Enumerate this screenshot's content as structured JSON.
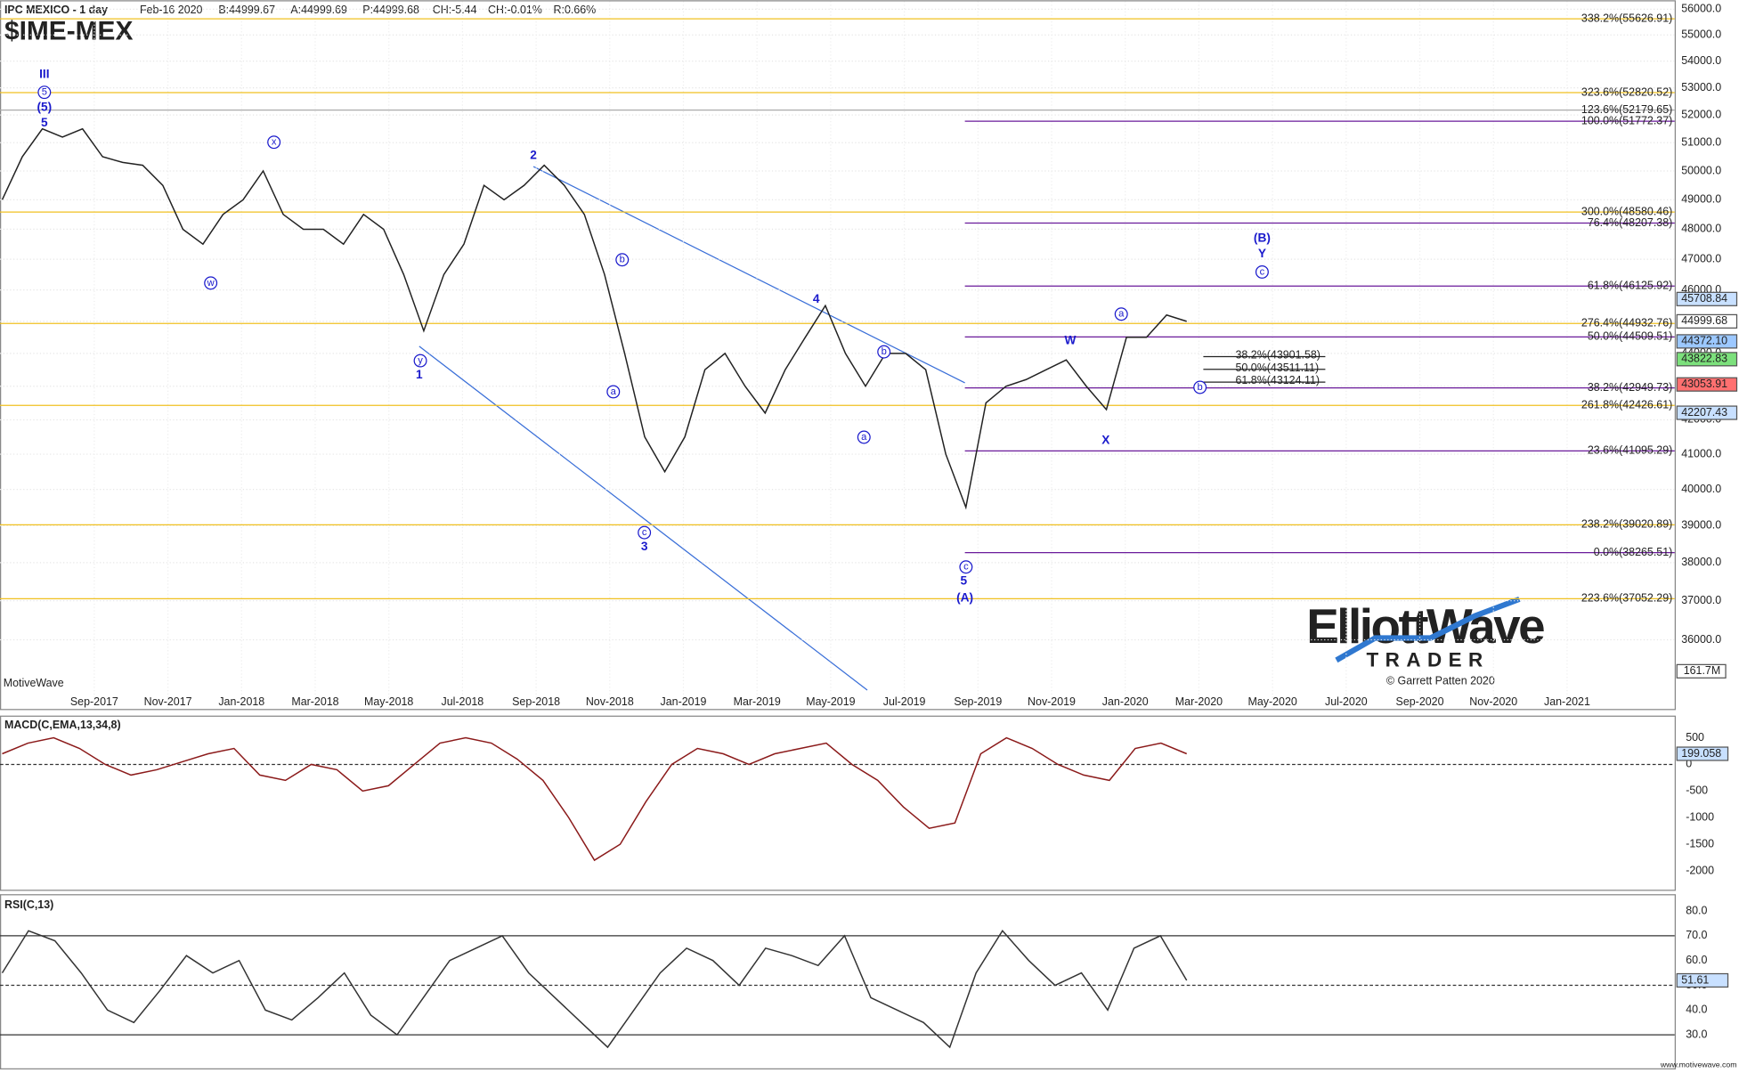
{
  "header": {
    "title": "IPC MEXICO - 1 day",
    "date": "Feb-16 2020",
    "bid": "B:44999.67",
    "ask": "A:44999.69",
    "price": "P:44999.68",
    "change": "CH:-5.44",
    "change_pct": "CH:-0.01%",
    "range": "R:0.66%",
    "symbol": "$IME-MEX",
    "brand": "MotiveWave",
    "footer": "www.motivewave.com"
  },
  "watermark": {
    "line1": "ElliottWave",
    "line2": "TRADER",
    "credit": "© Garrett Patten 2020"
  },
  "price_panel": {
    "log_scale": true,
    "ylim": [
      34270,
      56310
    ],
    "yticks": [
      {
        "value": 56000,
        "label": "56000.0"
      },
      {
        "value": 55000,
        "label": "55000.0"
      },
      {
        "value": 54000,
        "label": "54000.0"
      },
      {
        "value": 53000,
        "label": "53000.0"
      },
      {
        "value": 52000,
        "label": "52000.0"
      },
      {
        "value": 51000,
        "label": "51000.0"
      },
      {
        "value": 50000,
        "label": "50000.0"
      },
      {
        "value": 49000,
        "label": "49000.0"
      },
      {
        "value": 48000,
        "label": "48000.0"
      },
      {
        "value": 47000,
        "label": "47000.0"
      },
      {
        "value": 46000,
        "label": "46000.0"
      },
      {
        "value": 45000,
        "label": "45000.0"
      },
      {
        "value": 44000,
        "label": "44000.0"
      },
      {
        "value": 43000,
        "label": "43000.0"
      },
      {
        "value": 42000,
        "label": "42000.0"
      },
      {
        "value": 41000,
        "label": "41000.0"
      },
      {
        "value": 40000,
        "label": "40000.0"
      },
      {
        "value": 39000,
        "label": "39000.0"
      },
      {
        "value": 38000,
        "label": "38000.0"
      },
      {
        "value": 37000,
        "label": "37000.0"
      },
      {
        "value": 36000,
        "label": "36000.0"
      }
    ],
    "categories": [
      "Sep-2017",
      "Nov-2017",
      "Jan-2018",
      "Mar-2018",
      "May-2018",
      "Jul-2018",
      "Sep-2018",
      "Nov-2018",
      "Jan-2019",
      "Mar-2019",
      "May-2019",
      "Jul-2019",
      "Sep-2019",
      "Nov-2019",
      "Jan-2020",
      "Mar-2020",
      "May-2020",
      "Jul-2020",
      "Sep-2020",
      "Nov-2020",
      "Jan-2021"
    ],
    "price": {
      "color": "#222",
      "values": [
        49000,
        50500,
        51500,
        51200,
        51500,
        50500,
        50300,
        50200,
        49500,
        48000,
        47500,
        48500,
        49000,
        50000,
        48500,
        48000,
        48000,
        47500,
        48500,
        48000,
        46500,
        44700,
        46500,
        47500,
        49500,
        49000,
        49500,
        50200,
        49500,
        48500,
        46500,
        44000,
        41500,
        40500,
        41500,
        43500,
        44000,
        43000,
        42200,
        43500,
        44500,
        45500,
        44000,
        43000,
        44000,
        44000,
        43500,
        41000,
        39500,
        42500,
        43000,
        43200,
        43500,
        43800,
        43000,
        42300,
        44500,
        44500,
        45200,
        45000
      ]
    },
    "fib_levels": [
      {
        "value": 55626.91,
        "label": "338.2%(55626.91)",
        "color": "#f0c020",
        "start": 0
      },
      {
        "value": 52820.52,
        "label": "323.6%(52820.52)",
        "color": "#f0c020",
        "start": 0
      },
      {
        "value": 52179.65,
        "label": "123.6%(52179.65)",
        "color": "#aaaaaa",
        "start": 0
      },
      {
        "value": 48580.46,
        "label": "300.0%(48580.46)",
        "color": "#f0c020",
        "start": 0
      },
      {
        "value": 44932.76,
        "label": "276.4%(44932.76)",
        "color": "#f0c020",
        "start": 0
      },
      {
        "value": 42426.61,
        "label": "261.8%(42426.61)",
        "color": "#f0c020",
        "start": 0
      },
      {
        "value": 39020.89,
        "label": "238.2%(39020.89)",
        "color": "#f0c020",
        "start": 0
      },
      {
        "value": 37052.29,
        "label": "223.6%(37052.29)",
        "color": "#f0c020",
        "start": 0
      },
      {
        "value": 51772.37,
        "label": "100.0%(51772.37)",
        "color": "#6a1a9a",
        "start": 870
      },
      {
        "value": 48207.38,
        "label": "76.4%(48207.38)",
        "color": "#6a1a9a",
        "start": 870
      },
      {
        "value": 46125.92,
        "label": "61.8%(46125.92)",
        "color": "#6a1a9a",
        "start": 870
      },
      {
        "value": 44509.51,
        "label": "50.0%(44509.51)",
        "color": "#6a1a9a",
        "start": 870
      },
      {
        "value": 42949.73,
        "label": "38.2%(42949.73)",
        "color": "#6a1a9a",
        "start": 870
      },
      {
        "value": 41095.29,
        "label": "23.6%(41095.29)",
        "color": "#6a1a9a",
        "start": 870
      },
      {
        "value": 38265.51,
        "label": "0.0%(38265.51)",
        "color": "#6a1a9a",
        "start": 870
      }
    ],
    "retrace_levels": [
      {
        "value": 43901.58,
        "label": "38.2%(43901.58)"
      },
      {
        "value": 43511.11,
        "label": "50.0%(43511.11)"
      },
      {
        "value": 43124.11,
        "label": "61.8%(43124.11)"
      }
    ],
    "price_tags": [
      {
        "value": 45708.84,
        "label": "45708.84",
        "color": "#c8e0ff"
      },
      {
        "value": 44999.68,
        "label": "44999.68",
        "color": "#ffffff"
      },
      {
        "value": 44372.1,
        "label": "44372.10",
        "color": "#9cc8ff"
      },
      {
        "value": 43822.83,
        "label": "43822.83",
        "color": "#7ce07c"
      },
      {
        "value": 43053.91,
        "label": "43053.91",
        "color": "#ff7070"
      },
      {
        "value": 42207.43,
        "label": "42207.43",
        "color": "#c8e0ff"
      }
    ],
    "volume_tag": "161.7M",
    "waves": [
      {
        "label": "III",
        "circled": false
      },
      {
        "label": "5",
        "circled": true
      },
      {
        "label": "(5)",
        "circled": false
      },
      {
        "label": "5",
        "circled": false
      },
      {
        "label": "x",
        "circled": true
      },
      {
        "label": "w",
        "circled": true
      },
      {
        "label": "2",
        "circled": false
      },
      {
        "label": "b",
        "circled": true
      },
      {
        "label": "a",
        "circled": true
      },
      {
        "label": "y",
        "circled": true
      },
      {
        "label": "1",
        "circled": false
      },
      {
        "label": "c",
        "circled": true
      },
      {
        "label": "3",
        "circled": false
      },
      {
        "label": "4",
        "circled": false
      },
      {
        "label": "b",
        "circled": true
      },
      {
        "label": "a",
        "circled": true
      },
      {
        "label": "W",
        "circled": false
      },
      {
        "label": "a",
        "circled": true
      },
      {
        "label": "X",
        "circled": false
      },
      {
        "label": "c",
        "circled": true
      },
      {
        "label": "5",
        "circled": false
      },
      {
        "label": "(A)",
        "circled": false
      },
      {
        "label": "(B)",
        "circled": false
      },
      {
        "label": "Y",
        "circled": false
      },
      {
        "label": "c",
        "circled": true
      },
      {
        "label": "b",
        "circled": true
      }
    ]
  },
  "macd_panel": {
    "title": "MACD(C,EMA,13,34,8)",
    "ylim": [
      -2354,
      875
    ],
    "yticks": [
      500,
      0,
      -500,
      -1000,
      -1500,
      -2000
    ],
    "tag": "199.058",
    "color": "#8b1a1a",
    "values": [
      200,
      400,
      500,
      300,
      0,
      -200,
      -100,
      50,
      200,
      300,
      -200,
      -300,
      0,
      -100,
      -500,
      -400,
      0,
      400,
      500,
      400,
      100,
      -300,
      -1000,
      -1800,
      -1500,
      -700,
      0,
      300,
      200,
      0,
      200,
      300,
      400,
      0,
      -300,
      -800,
      -1200,
      -1100,
      200,
      500,
      300,
      0,
      -200,
      -300,
      300,
      400,
      200
    ]
  },
  "rsi_panel": {
    "title": "RSI(C,13)",
    "ylim": [
      16.5,
      85.9
    ],
    "yticks": [
      {
        "value": 80,
        "label": "80.0"
      },
      {
        "value": 70,
        "label": "70.0"
      },
      {
        "value": 60,
        "label": "60.0"
      },
      {
        "value": 50,
        "label": "50.0"
      },
      {
        "value": 40,
        "label": "40.0"
      },
      {
        "value": 30,
        "label": "30.0"
      }
    ],
    "tag": "51.61",
    "color": "#333",
    "values": [
      55,
      72,
      68,
      55,
      40,
      35,
      48,
      62,
      55,
      60,
      40,
      36,
      45,
      55,
      38,
      30,
      45,
      60,
      65,
      70,
      55,
      45,
      35,
      25,
      40,
      55,
      65,
      60,
      50,
      65,
      62,
      58,
      70,
      45,
      40,
      35,
      25,
      55,
      72,
      60,
      50,
      55,
      40,
      65,
      70,
      52
    ]
  }
}
